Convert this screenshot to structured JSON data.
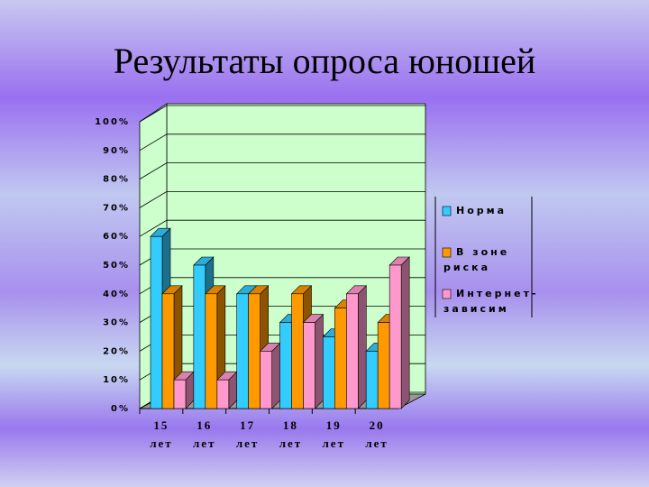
{
  "chart_data": {
    "type": "bar3d",
    "title": "Результаты опроса юношей",
    "categories": [
      "15 лет",
      "16 лет",
      "17 лет",
      "18 лет",
      "19 лет",
      "20 лет"
    ],
    "series": [
      {
        "name": "Норма",
        "color": "#33ccff",
        "values": [
          60,
          50,
          40,
          30,
          25,
          20
        ]
      },
      {
        "name": "В зоне риска",
        "color": "#ff9900",
        "values": [
          40,
          40,
          40,
          40,
          35,
          30
        ]
      },
      {
        "name": "Интернет-зависим",
        "color": "#ff99cc",
        "values": [
          10,
          10,
          20,
          30,
          40,
          50
        ]
      }
    ],
    "ylim": [
      0,
      100
    ],
    "yticks": [
      {
        "value": 0,
        "label": "0%"
      },
      {
        "value": 10,
        "label": "10%"
      },
      {
        "value": 20,
        "label": "20%"
      },
      {
        "value": 30,
        "label": "30%"
      },
      {
        "value": 40,
        "label": "40%"
      },
      {
        "value": 50,
        "label": "50%"
      },
      {
        "value": 60,
        "label": "60%"
      },
      {
        "value": 70,
        "label": "70%"
      },
      {
        "value": 80,
        "label": "80%"
      },
      {
        "value": 90,
        "label": "90%"
      },
      {
        "value": 100,
        "label": "100%"
      }
    ],
    "grid": true,
    "legend": "right"
  }
}
